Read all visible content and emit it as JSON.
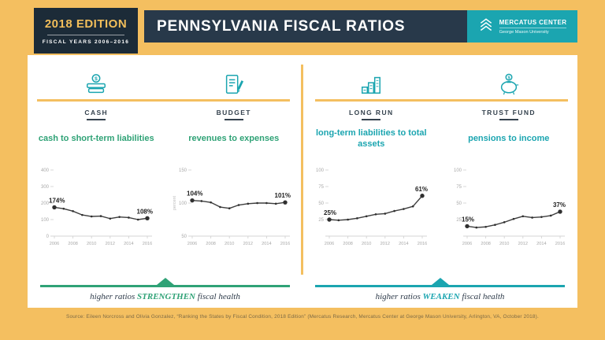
{
  "header": {
    "edition": "2018 EDITION",
    "fiscal_years": "FISCAL YEARS 2006–2016",
    "title": "PENNSYLVANIA FISCAL RATIOS",
    "logo": {
      "name": "MERCATUS CENTER",
      "subtitle": "George Mason University"
    }
  },
  "panels": [
    {
      "category": "CASH",
      "subtitle": "cash to short-term liabilities"
    },
    {
      "category": "BUDGET",
      "subtitle": "revenues to expenses"
    },
    {
      "category": "LONG RUN",
      "subtitle": "long-term liabilities to total assets"
    },
    {
      "category": "TRUST FUND",
      "subtitle": "pensions to income"
    }
  ],
  "footers": {
    "left": {
      "pre": "higher ratios ",
      "em": "STRENGTHEN",
      "post": " fiscal health"
    },
    "right": {
      "pre": "higher ratios ",
      "em": "WEAKEN",
      "post": " fiscal health"
    }
  },
  "source": "Source: Eileen Norcross and Olivia Gonzalez, “Ranking the States by Fiscal Condition, 2018 Edition” (Mercatus Research, Mercatus Center at George Mason University, Arlington, VA, October 2018).",
  "colors": {
    "background_yellow": "#F4BF60",
    "navy": "#28394A",
    "teal": "#1BA5B0",
    "green": "#2FA276"
  },
  "chart_data": [
    {
      "type": "line",
      "title": "cash to short-term liabilities",
      "x": [
        2006,
        2007,
        2008,
        2009,
        2010,
        2011,
        2012,
        2013,
        2014,
        2015,
        2016
      ],
      "values": [
        174,
        166,
        151,
        128,
        119,
        121,
        106,
        116,
        112,
        100,
        108
      ],
      "yticks": [
        0,
        100,
        200,
        300,
        400
      ],
      "ylim": [
        0,
        400
      ],
      "xticks": [
        2006,
        2008,
        2010,
        2012,
        2014,
        2016
      ],
      "start_label": "174%",
      "end_label": "108%",
      "ylabel": ""
    },
    {
      "type": "line",
      "title": "revenues to expenses",
      "x": [
        2006,
        2007,
        2008,
        2009,
        2010,
        2011,
        2012,
        2013,
        2014,
        2015,
        2016
      ],
      "values": [
        104,
        103,
        101,
        94,
        92,
        97,
        99,
        100,
        100,
        99,
        101
      ],
      "yticks": [
        50,
        100,
        150
      ],
      "ylim": [
        50,
        150
      ],
      "xticks": [
        2006,
        2008,
        2010,
        2012,
        2014,
        2016
      ],
      "start_label": "104%",
      "end_label": "101%",
      "ylabel": "percent"
    },
    {
      "type": "line",
      "title": "long-term liabilities to total assets",
      "x": [
        2006,
        2007,
        2008,
        2009,
        2010,
        2011,
        2012,
        2013,
        2014,
        2015,
        2016
      ],
      "values": [
        25,
        24,
        25,
        27,
        30,
        33,
        34,
        38,
        41,
        45,
        61
      ],
      "yticks": [
        25,
        50,
        75,
        100
      ],
      "ylim": [
        0,
        100
      ],
      "xticks": [
        2006,
        2008,
        2010,
        2012,
        2014,
        2016
      ],
      "start_label": "25%",
      "end_label": "61%",
      "ylabel": ""
    },
    {
      "type": "line",
      "title": "pensions to income",
      "x": [
        2006,
        2007,
        2008,
        2009,
        2010,
        2011,
        2012,
        2013,
        2014,
        2015,
        2016
      ],
      "values": [
        15,
        13,
        14,
        17,
        21,
        26,
        30,
        28,
        29,
        31,
        37
      ],
      "yticks": [
        25,
        50,
        75,
        100
      ],
      "ylim": [
        0,
        100
      ],
      "xticks": [
        2006,
        2008,
        2010,
        2012,
        2014,
        2016
      ],
      "start_label": "15%",
      "end_label": "37%",
      "ylabel": ""
    }
  ]
}
